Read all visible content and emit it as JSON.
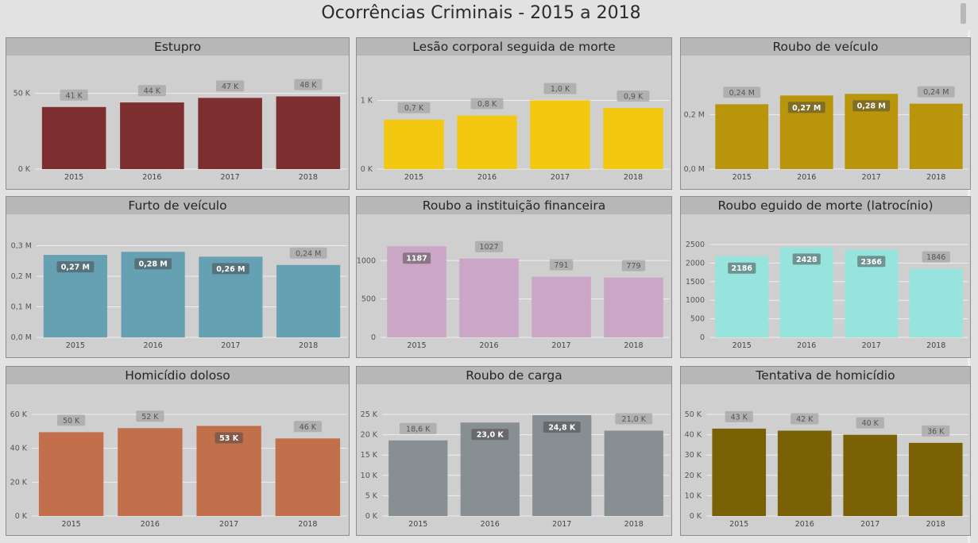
{
  "page": {
    "title": "Ocorrências Criminais - 2015 a 2018"
  },
  "chart_data": [
    {
      "type": "bar",
      "title": "Estupro",
      "categories": [
        "2015",
        "2016",
        "2017",
        "2018"
      ],
      "values": [
        41000,
        44000,
        47000,
        48000
      ],
      "labels": [
        "41 K",
        "44 K",
        "47 K",
        "48 K"
      ],
      "ylim": [
        0,
        54000
      ],
      "yticks": [
        0,
        50000
      ],
      "ytick_labels": [
        "0 K",
        "50 K"
      ],
      "color": "#7d2e2e",
      "label_style": [
        "out",
        "out",
        "out",
        "out"
      ]
    },
    {
      "type": "bar",
      "title": "Lesão corporal seguida de morte",
      "categories": [
        "2015",
        "2016",
        "2017",
        "2018"
      ],
      "values": [
        720,
        780,
        1000,
        890
      ],
      "labels": [
        "0,7 K",
        "0,8 K",
        "1,0 K",
        "0,9 K"
      ],
      "ylim": [
        0,
        1190
      ],
      "yticks": [
        0,
        1000
      ],
      "ytick_labels": [
        "0 K",
        "1 K"
      ],
      "color": "#f2c811",
      "label_style": [
        "out",
        "out",
        "out",
        "out"
      ]
    },
    {
      "type": "bar",
      "title": "Roubo de veículo",
      "categories": [
        "2015",
        "2016",
        "2017",
        "2018"
      ],
      "values": [
        0.238,
        0.27,
        0.276,
        0.24
      ],
      "labels": [
        "0,24 M",
        "0,27 M",
        "0,28 M",
        "0,24 M"
      ],
      "ylim": [
        0,
        0.3
      ],
      "yticks": [
        0,
        0.2
      ],
      "ytick_labels": [
        "0,0 M",
        "0,2 M"
      ],
      "color": "#b8950b",
      "label_style": [
        "out",
        "in",
        "in",
        "out"
      ]
    },
    {
      "type": "bar",
      "title": "Furto de veículo",
      "categories": [
        "2015",
        "2016",
        "2017",
        "2018"
      ],
      "values": [
        0.27,
        0.28,
        0.264,
        0.237
      ],
      "labels": [
        "0,27 M",
        "0,28 M",
        "0,26 M",
        "0,24 M"
      ],
      "ylim": [
        0,
        0.304
      ],
      "yticks": [
        0,
        0.1,
        0.2,
        0.3
      ],
      "ytick_labels": [
        "0,0 M",
        "0,1 M",
        "0,2 M",
        "0,3 M"
      ],
      "color": "#66a0b3",
      "label_style": [
        "in",
        "in",
        "in",
        "out"
      ]
    },
    {
      "type": "bar",
      "title": "Roubo a instituição financeira",
      "categories": [
        "2015",
        "2016",
        "2017",
        "2018"
      ],
      "values": [
        1187,
        1027,
        791,
        779
      ],
      "labels": [
        "1187",
        "1027",
        "791",
        "779"
      ],
      "ylim": [
        0,
        1210
      ],
      "yticks": [
        0,
        500,
        1000
      ],
      "ytick_labels": [
        "0",
        "500",
        "1000"
      ],
      "color": "#cca6c7",
      "label_style": [
        "in",
        "out",
        "out",
        "out"
      ]
    },
    {
      "type": "bar",
      "title": "Roubo eguido de morte (latrocínio)",
      "categories": [
        "2015",
        "2016",
        "2017",
        "2018"
      ],
      "values": [
        2186,
        2428,
        2366,
        1846
      ],
      "labels": [
        "2186",
        "2428",
        "2366",
        "1846"
      ],
      "ylim": [
        0,
        2500
      ],
      "yticks": [
        0,
        500,
        1000,
        1500,
        2000,
        2500
      ],
      "ytick_labels": [
        "0",
        "500",
        "1000",
        "1500",
        "2000",
        "2500"
      ],
      "color": "#97e3dd",
      "label_style": [
        "in",
        "in",
        "in",
        "out"
      ]
    },
    {
      "type": "bar",
      "title": "Homicídio doloso",
      "categories": [
        "2015",
        "2016",
        "2017",
        "2018"
      ],
      "values": [
        49500,
        51900,
        53200,
        45800
      ],
      "labels": [
        "50 K",
        "52 K",
        "53 K",
        "46 K"
      ],
      "ylim": [
        0,
        60000
      ],
      "yticks": [
        0,
        20000,
        40000,
        60000
      ],
      "ytick_labels": [
        "0 K",
        "20 K",
        "40 K",
        "60 K"
      ],
      "color": "#c2704b",
      "label_style": [
        "out",
        "out",
        "in",
        "out"
      ]
    },
    {
      "type": "bar",
      "title": "Roubo de carga",
      "categories": [
        "2015",
        "2016",
        "2017",
        "2018"
      ],
      "values": [
        18600,
        23000,
        24800,
        21000
      ],
      "labels": [
        "18,6 K",
        "23,0 K",
        "24,8 K",
        "21,0 K"
      ],
      "ylim": [
        0,
        25000
      ],
      "yticks": [
        0,
        5000,
        10000,
        15000,
        20000,
        25000
      ],
      "ytick_labels": [
        "0 K",
        "5 K",
        "10 K",
        "15 K",
        "20 K",
        "25 K"
      ],
      "color": "#878f93",
      "label_style": [
        "out",
        "in",
        "in",
        "out"
      ]
    },
    {
      "type": "bar",
      "title": "Tentativa de homicídio",
      "categories": [
        "2015",
        "2016",
        "2017",
        "2018"
      ],
      "values": [
        43000,
        42000,
        40000,
        36000
      ],
      "labels": [
        "43 K",
        "42 K",
        "40 K",
        "36 K"
      ],
      "ylim": [
        0,
        50000
      ],
      "yticks": [
        0,
        10000,
        20000,
        30000,
        40000,
        50000
      ],
      "ytick_labels": [
        "0 K",
        "10 K",
        "20 K",
        "30 K",
        "40 K",
        "50 K"
      ],
      "color": "#7a6106",
      "label_style": [
        "out",
        "out",
        "out",
        "out"
      ]
    }
  ]
}
